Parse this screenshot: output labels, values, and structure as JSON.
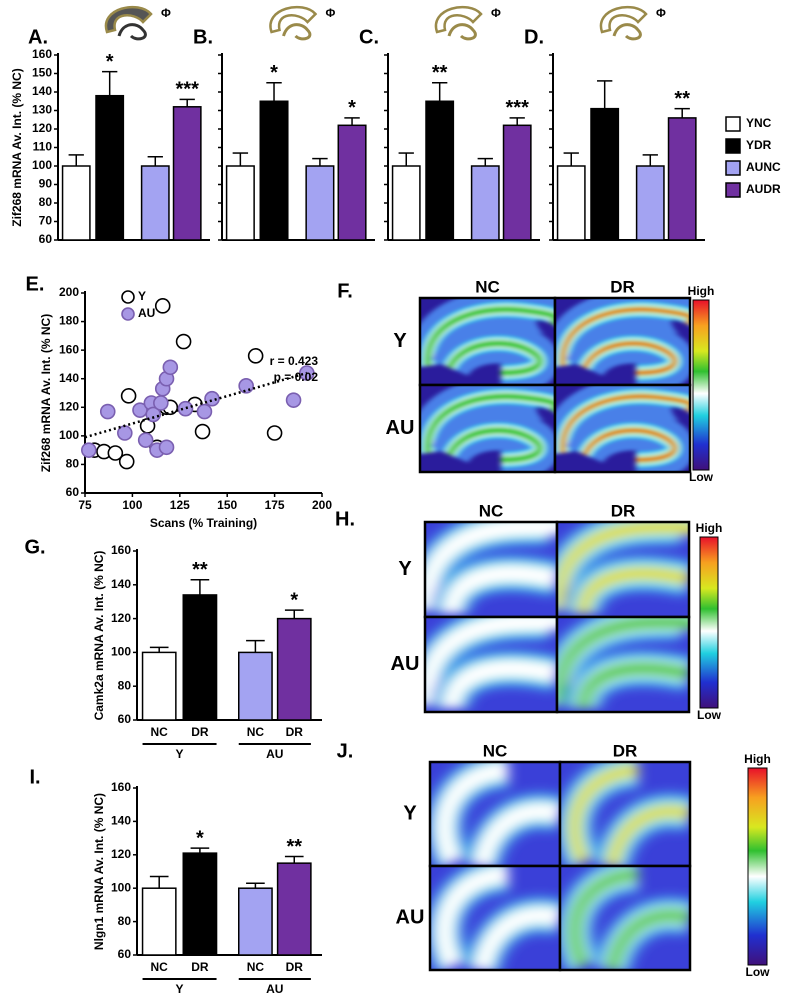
{
  "chart_data": [
    {
      "type": "bar",
      "title": "A.",
      "icon_text": "Φ",
      "ylabel": "Zif268 mRNA Av. Int. (% NC)",
      "categories": [
        "YNC",
        "YDR",
        "AUNC",
        "AUDR"
      ],
      "values": [
        100,
        138,
        100,
        132
      ],
      "errors": [
        6,
        13,
        5,
        4
      ],
      "significance": [
        null,
        "*",
        null,
        "***"
      ],
      "colors": [
        "#ffffff",
        "#000000",
        "#a3a3f2",
        "#7030a0"
      ],
      "ylim": [
        60,
        160
      ],
      "yticks": [
        60,
        70,
        80,
        90,
        100,
        110,
        120,
        130,
        140,
        150,
        160
      ],
      "tick_labels": true,
      "legend": true
    },
    {
      "type": "bar",
      "title": "B.",
      "icon_text": "Φ",
      "categories": [
        "YNC",
        "YDR",
        "AUNC",
        "AUDR"
      ],
      "values": [
        100,
        135,
        100,
        122
      ],
      "errors": [
        7,
        10,
        4,
        4
      ],
      "significance": [
        null,
        "*",
        null,
        "*"
      ],
      "colors": [
        "#ffffff",
        "#000000",
        "#a3a3f2",
        "#7030a0"
      ],
      "ylim": [
        60,
        160
      ],
      "yticks": [
        60,
        70,
        80,
        90,
        100,
        110,
        120,
        130,
        140,
        150,
        160
      ],
      "tick_labels": false,
      "legend": false
    },
    {
      "type": "bar",
      "title": "C.",
      "icon_text": "Φ",
      "categories": [
        "YNC",
        "YDR",
        "AUNC",
        "AUDR"
      ],
      "values": [
        100,
        135,
        100,
        122
      ],
      "errors": [
        7,
        10,
        4,
        4
      ],
      "significance": [
        null,
        "**",
        null,
        "***"
      ],
      "colors": [
        "#ffffff",
        "#000000",
        "#a3a3f2",
        "#7030a0"
      ],
      "ylim": [
        60,
        160
      ],
      "yticks": [
        60,
        70,
        80,
        90,
        100,
        110,
        120,
        130,
        140,
        150,
        160
      ],
      "tick_labels": false,
      "legend": false
    },
    {
      "type": "bar",
      "title": "D.",
      "icon_text": "Φ",
      "categories": [
        "YNC",
        "YDR",
        "AUNC",
        "AUDR"
      ],
      "values": [
        100,
        131,
        100,
        126
      ],
      "errors": [
        7,
        15,
        6,
        5
      ],
      "significance": [
        null,
        null,
        null,
        "**"
      ],
      "colors": [
        "#ffffff",
        "#000000",
        "#a3a3f2",
        "#7030a0"
      ],
      "ylim": [
        60,
        160
      ],
      "yticks": [
        60,
        70,
        80,
        90,
        100,
        110,
        120,
        130,
        140,
        150,
        160
      ],
      "tick_labels": false,
      "legend": false
    },
    {
      "type": "scatter",
      "title": "E.",
      "xlabel": "Scans (% Training)",
      "ylabel": "Zif268 mRNA Av. Int. (% NC)",
      "series": [
        {
          "name": "Y",
          "color": "#ffffff",
          "edgecolor": "#000000",
          "x": [
            80,
            85,
            91,
            97,
            98,
            108,
            113,
            116,
            118,
            120,
            127,
            133,
            137,
            165,
            175
          ],
          "values": [
            90,
            89,
            88,
            82,
            128,
            107,
            92,
            191,
            120,
            120,
            166,
            122,
            103,
            156,
            102
          ]
        },
        {
          "name": "AU",
          "color": "#a797e4",
          "edgecolor": "#7a5fb0",
          "x": [
            77,
            87,
            96,
            104,
            107,
            110,
            111,
            113,
            115,
            116,
            118,
            120,
            118,
            128,
            138,
            142,
            160,
            185,
            192
          ],
          "values": [
            90,
            117,
            102,
            118,
            97,
            123,
            115,
            90,
            123,
            133,
            140,
            148,
            92,
            119,
            117,
            126,
            135,
            125,
            144
          ]
        }
      ],
      "trendline": {
        "x": [
          75,
          192
        ],
        "values": [
          99,
          144
        ]
      },
      "annotations": [
        "r = 0.423",
        "p = 0.02"
      ],
      "xlim": [
        75,
        200
      ],
      "xticks": [
        75,
        100,
        125,
        150,
        175,
        200
      ],
      "ylim": [
        60,
        200
      ],
      "yticks": [
        60,
        80,
        100,
        120,
        140,
        160,
        180,
        200
      ]
    },
    {
      "type": "bar",
      "title": "G.",
      "ylabel": "Camk2a mRNA Av. Int. (% NC)",
      "categories": [
        "NC",
        "DR",
        "NC",
        "DR"
      ],
      "groups": [
        "Y",
        "AU"
      ],
      "values": [
        100,
        134,
        100,
        120
      ],
      "errors": [
        3,
        9,
        7,
        5
      ],
      "significance": [
        null,
        "**",
        null,
        "*"
      ],
      "colors": [
        "#ffffff",
        "#000000",
        "#a3a3f2",
        "#7030a0"
      ],
      "ylim": [
        60,
        160
      ],
      "yticks": [
        60,
        80,
        100,
        120,
        140,
        160
      ],
      "tick_labels": true,
      "legend": false
    },
    {
      "type": "bar",
      "title": "I.",
      "ylabel": "Nlgn1 mRNA Av. Int. (% NC)",
      "categories": [
        "NC",
        "DR",
        "NC",
        "DR"
      ],
      "groups": [
        "Y",
        "AU"
      ],
      "values": [
        100,
        121,
        100,
        115
      ],
      "errors": [
        7,
        3,
        3,
        4
      ],
      "significance": [
        null,
        "*",
        null,
        "**"
      ],
      "colors": [
        "#ffffff",
        "#000000",
        "#a3a3f2",
        "#7030a0"
      ],
      "ylim": [
        60,
        160
      ],
      "yticks": [
        60,
        80,
        100,
        120,
        140,
        160
      ],
      "tick_labels": true,
      "legend": false
    }
  ],
  "image_panels": [
    {
      "label": "F.",
      "columns": [
        "NC",
        "DR"
      ],
      "rows": [
        "Y",
        "AU"
      ],
      "colorbar": [
        "High",
        "Low"
      ]
    },
    {
      "label": "H.",
      "columns": [
        "NC",
        "DR"
      ],
      "rows": [
        "Y",
        "AU"
      ],
      "colorbar": [
        "High",
        "Low"
      ]
    },
    {
      "label": "J.",
      "columns": [
        "NC",
        "DR"
      ],
      "rows": [
        "Y",
        "AU"
      ],
      "colorbar": [
        "High",
        "Low"
      ]
    }
  ]
}
